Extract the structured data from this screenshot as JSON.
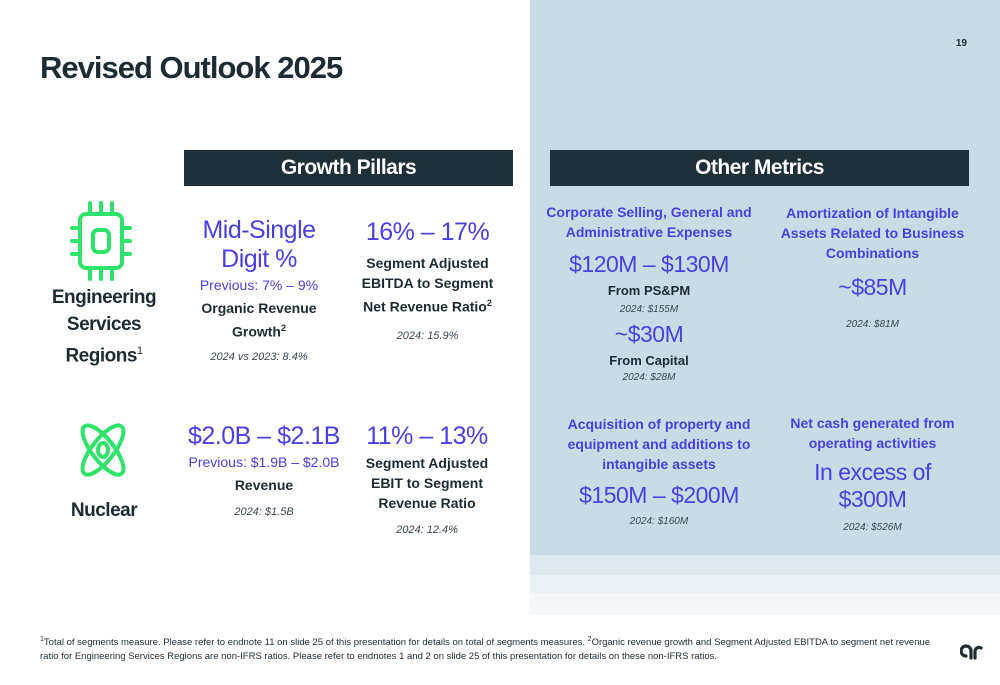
{
  "page": {
    "number": "19",
    "title": "Revised Outlook 2025"
  },
  "headers": {
    "growth_pillars": "Growth Pillars",
    "other_metrics": "Other Metrics"
  },
  "colors": {
    "accent": "#4a3fe0",
    "icon_green": "#2ee26a",
    "dark": "#1f2f38",
    "panel": "#c9dce6"
  },
  "segments": {
    "engineering": {
      "label": "Engineering Services Regions",
      "superscript": "1",
      "icon": "chip-icon",
      "organic": {
        "value": "Mid-Single Digit %",
        "previous": "Previous: 7% – 9%",
        "label": "Organic Revenue Growth",
        "superscript": "2",
        "note": "2024 vs 2023: 8.4%"
      },
      "ebitda": {
        "value": "16% – 17%",
        "label": "Segment Adjusted EBITDA to Segment Net Revenue Ratio",
        "superscript": "2",
        "note": "2024: 15.9%"
      }
    },
    "nuclear": {
      "label": "Nuclear",
      "icon": "atom-icon",
      "revenue": {
        "value": "$2.0B – $2.1B",
        "previous": "Previous: $1.9B – $2.0B",
        "label": "Revenue",
        "note": "2024: $1.5B"
      },
      "ebit": {
        "value": "11% – 13%",
        "label": "Segment Adjusted EBIT to Segment Revenue Ratio",
        "note": "2024: 12.4%"
      }
    }
  },
  "metrics": {
    "sga": {
      "title": "Corporate Selling, General and Administrative Expenses",
      "value1": "$120M – $130M",
      "label1": "From PS&PM",
      "note1": "2024: $155M",
      "value2": "~$30M",
      "label2": "From Capital",
      "note2": "2024: $28M"
    },
    "amortization": {
      "title": "Amortization of Intangible Assets Related to Business Combinations",
      "value": "~$85M",
      "note": "2024: $81M"
    },
    "capex": {
      "title": "Acquisition of property and equipment and additions to intangible assets",
      "value": "$150M – $200M",
      "note": "2024: $160M"
    },
    "cash": {
      "title": "Net cash generated from operating activities",
      "value": "In excess of $300M",
      "note": "2024: $526M"
    }
  },
  "footnote": {
    "sup1": "1",
    "text1": "Total of segments measure. Please refer to endnote 11 on slide 25 of this presentation for details on total of segments measures. ",
    "sup2": "2",
    "text2": "Organic revenue growth and Segment Adjusted EBITDA to segment net revenue ratio for Engineering Services Regions are non-IFRS ratios. Please refer to endnotes 1 and 2 on slide 25 of this presentation for details on these non-IFRS ratios."
  }
}
